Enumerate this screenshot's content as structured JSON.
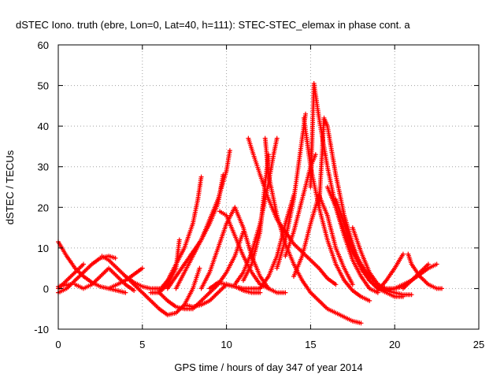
{
  "chart_data": {
    "type": "scatter",
    "title": "dSTEC Iono. truth (ebre, Lon=0, Lat=40, h=111): STEC-STEC_elemax in phase cont. a",
    "xlabel": "GPS time / hours of day 347 of year 2014",
    "ylabel": "dSTEC  / TECUs",
    "xlim": [
      0,
      25
    ],
    "ylim": [
      -10,
      60
    ],
    "xticks": [
      "0",
      "5",
      "10",
      "15",
      "20",
      "25"
    ],
    "yticks": [
      "-10",
      "0",
      "10",
      "20",
      "30",
      "40",
      "50",
      "60"
    ],
    "grid": true,
    "marker": "plus",
    "color": "#ff0000",
    "series": [
      {
        "x": [
          0.0,
          0.5,
          1.0,
          1.5,
          2.0,
          2.5,
          3.0,
          3.5,
          4.0
        ],
        "y": [
          11.5,
          8,
          5,
          3,
          1.5,
          0.5,
          0,
          -0.5,
          -1
        ]
      },
      {
        "x": [
          0.0,
          0.5,
          1.0,
          1.5,
          2.0,
          2.5,
          3.0,
          3.4
        ],
        "y": [
          -1,
          0,
          2,
          4,
          6,
          7.5,
          8,
          7.5
        ]
      },
      {
        "x": [
          0.0,
          0.5,
          1.0,
          1.5
        ],
        "y": [
          0,
          2,
          4,
          6
        ]
      },
      {
        "x": [
          0.0,
          0.3,
          0.7
        ],
        "y": [
          0.5,
          0.8,
          1
        ]
      },
      {
        "x": [
          1.0,
          1.5,
          2.0,
          2.5,
          3.0,
          3.5,
          4.0,
          4.5
        ],
        "y": [
          1,
          0,
          1,
          3,
          5,
          3,
          1,
          -0.5
        ]
      },
      {
        "x": [
          2.6,
          3.0,
          3.5,
          4.0,
          4.5,
          5.0,
          5.5,
          6.0
        ],
        "y": [
          8,
          7,
          5,
          3,
          1.5,
          0.5,
          0,
          0
        ]
      },
      {
        "x": [
          3.0,
          3.5,
          4.0,
          4.5,
          5.0
        ],
        "y": [
          0,
          1,
          2,
          3.5,
          5
        ]
      },
      {
        "x": [
          4.0,
          4.5,
          5.0,
          5.5,
          6.0,
          6.5,
          7.0,
          7.5,
          8.0,
          8.4
        ],
        "y": [
          3,
          1,
          -1,
          -3,
          -5,
          -6.5,
          -6,
          -4,
          0,
          5
        ]
      },
      {
        "x": [
          5.5,
          6.0,
          6.5,
          7.0,
          7.5,
          8.0,
          8.5,
          9.0,
          9.5,
          10.0,
          10.5,
          11.0
        ],
        "y": [
          -1,
          -1,
          -3,
          -4.5,
          -5,
          -5,
          -3,
          -1,
          1,
          4,
          8,
          14
        ]
      },
      {
        "x": [
          6.0,
          6.5,
          7.0,
          7.2
        ],
        "y": [
          -1,
          1,
          5,
          12
        ]
      },
      {
        "x": [
          6.0,
          6.5,
          7.0,
          7.5,
          8.0,
          8.3,
          8.5
        ],
        "y": [
          -0.5,
          2,
          6,
          10,
          16,
          22,
          27.5
        ]
      },
      {
        "x": [
          6.5,
          7.0,
          7.5,
          8.0,
          8.5,
          9.0,
          9.5,
          9.8
        ],
        "y": [
          0,
          3,
          6,
          9,
          12,
          16,
          21,
          28
        ]
      },
      {
        "x": [
          7.0,
          7.5,
          8.0,
          8.5,
          9.0,
          9.5,
          10.0,
          10.2
        ],
        "y": [
          0,
          4,
          8,
          12,
          17,
          22,
          29,
          34
        ]
      },
      {
        "x": [
          7.5,
          8.0,
          8.5,
          9.0,
          9.5,
          10.0,
          10.5,
          11.0,
          11.5,
          12.0
        ],
        "y": [
          -4,
          -4.5,
          -4,
          -3,
          -1,
          1,
          0.5,
          -0.5,
          -1,
          -1
        ]
      },
      {
        "x": [
          8.5,
          9.0,
          9.5,
          10.0,
          10.5,
          11.0,
          11.5,
          12.0,
          12.5
        ],
        "y": [
          0,
          4,
          10,
          16,
          20,
          15,
          8,
          3,
          0
        ]
      },
      {
        "x": [
          9.0,
          9.5,
          10.0,
          10.5,
          11.0,
          11.5,
          12.0
        ],
        "y": [
          0,
          1.5,
          1,
          0.5,
          0,
          0,
          0
        ]
      },
      {
        "x": [
          9.6,
          10.0,
          10.5,
          11.0,
          11.5,
          12.0,
          12.5,
          13.0,
          13.5
        ],
        "y": [
          19,
          18,
          13,
          8,
          4,
          1,
          0,
          -1,
          -1
        ]
      },
      {
        "x": [
          11.3,
          11.6,
          12.0,
          12.5,
          13.0,
          13.5,
          14.0,
          14.5,
          15.0,
          15.5,
          16.0,
          16.5
        ],
        "y": [
          37,
          33,
          28,
          22,
          17,
          14,
          11,
          9,
          7,
          5,
          2.5,
          1
        ]
      },
      {
        "x": [
          10.5,
          11.0,
          11.5,
          12.0,
          12.5,
          12.8,
          13.0
        ],
        "y": [
          1,
          4,
          9,
          16,
          26,
          33,
          37
        ]
      },
      {
        "x": [
          11.0,
          11.5,
          12.0,
          12.3,
          12.5
        ],
        "y": [
          2,
          6,
          14,
          26,
          33
        ]
      },
      {
        "x": [
          12.3,
          12.5,
          13.0,
          13.5,
          14.0,
          14.5,
          15.0,
          15.5,
          16.0,
          16.5,
          17.0,
          17.5,
          18.0
        ],
        "y": [
          37,
          28,
          18,
          11,
          6,
          2,
          -1,
          -3,
          -5,
          -6,
          -7,
          -8,
          -8.5
        ]
      },
      {
        "x": [
          12.0,
          12.5,
          13.0,
          13.5,
          14.0
        ],
        "y": [
          0,
          3,
          8,
          16,
          23
        ]
      },
      {
        "x": [
          13.0,
          13.5,
          14.0,
          14.4,
          14.7
        ],
        "y": [
          5,
          12,
          22,
          34,
          43
        ]
      },
      {
        "x": [
          14.6,
          15.0,
          15.5,
          16.0,
          16.5,
          17.0,
          17.5,
          18.0,
          18.5
        ],
        "y": [
          42,
          30,
          20,
          12,
          6,
          2,
          -0.5,
          -2,
          -3
        ]
      },
      {
        "x": [
          13.5,
          14.0,
          14.5,
          15.0,
          15.3
        ],
        "y": [
          8,
          14,
          22,
          30,
          33
        ]
      },
      {
        "x": [
          15.0,
          15.2,
          15.5,
          16.0,
          16.5,
          17.0,
          17.5,
          18.0,
          18.5,
          19.0
        ],
        "y": [
          25,
          50.5,
          42,
          30,
          20,
          13,
          7,
          3,
          0,
          -1
        ]
      },
      {
        "x": [
          15.5,
          15.8,
          16.0,
          16.5,
          17.0,
          17.5,
          18.0,
          18.5,
          19.0,
          19.5,
          20.0,
          20.5,
          21.0
        ],
        "y": [
          20,
          42,
          40,
          28,
          18,
          11,
          5,
          2,
          0,
          -0.5,
          0,
          1,
          2
        ]
      },
      {
        "x": [
          14.0,
          14.5,
          15.0,
          15.5,
          16.0,
          16.5,
          17.0,
          17.5
        ],
        "y": [
          3,
          8,
          16,
          23,
          18,
          10,
          5,
          1
        ]
      },
      {
        "x": [
          16.0,
          16.5,
          17.0,
          17.5,
          18.0,
          18.5,
          19.0,
          19.5,
          20.0,
          20.5
        ],
        "y": [
          25,
          20,
          14,
          9,
          5,
          2,
          0,
          -1,
          -2,
          -2
        ]
      },
      {
        "x": [
          16.5,
          17.0,
          17.5,
          18.0,
          18.5,
          19.0,
          19.5,
          20.0,
          20.5,
          21.0,
          21.5,
          22.0
        ],
        "y": [
          22,
          16,
          10,
          6,
          3,
          1,
          0,
          0,
          0.5,
          2,
          4,
          6
        ]
      },
      {
        "x": [
          17.5,
          18.0,
          18.5,
          19.0,
          19.5,
          20.0,
          20.5,
          21.0
        ],
        "y": [
          15,
          9,
          4,
          1,
          -0.5,
          -1,
          -1.5,
          -1.5
        ]
      },
      {
        "x": [
          19.0,
          19.5,
          20.0,
          20.5
        ],
        "y": [
          -0.5,
          2,
          5,
          8.5
        ]
      },
      {
        "x": [
          20.8,
          21.0,
          21.5,
          22.0,
          22.5,
          22.8
        ],
        "y": [
          8.5,
          6,
          3,
          1,
          0,
          0
        ]
      },
      {
        "x": [
          20.5,
          21.0,
          21.5,
          22.0,
          22.5
        ],
        "y": [
          0,
          2,
          3.5,
          5,
          6
        ]
      }
    ]
  }
}
